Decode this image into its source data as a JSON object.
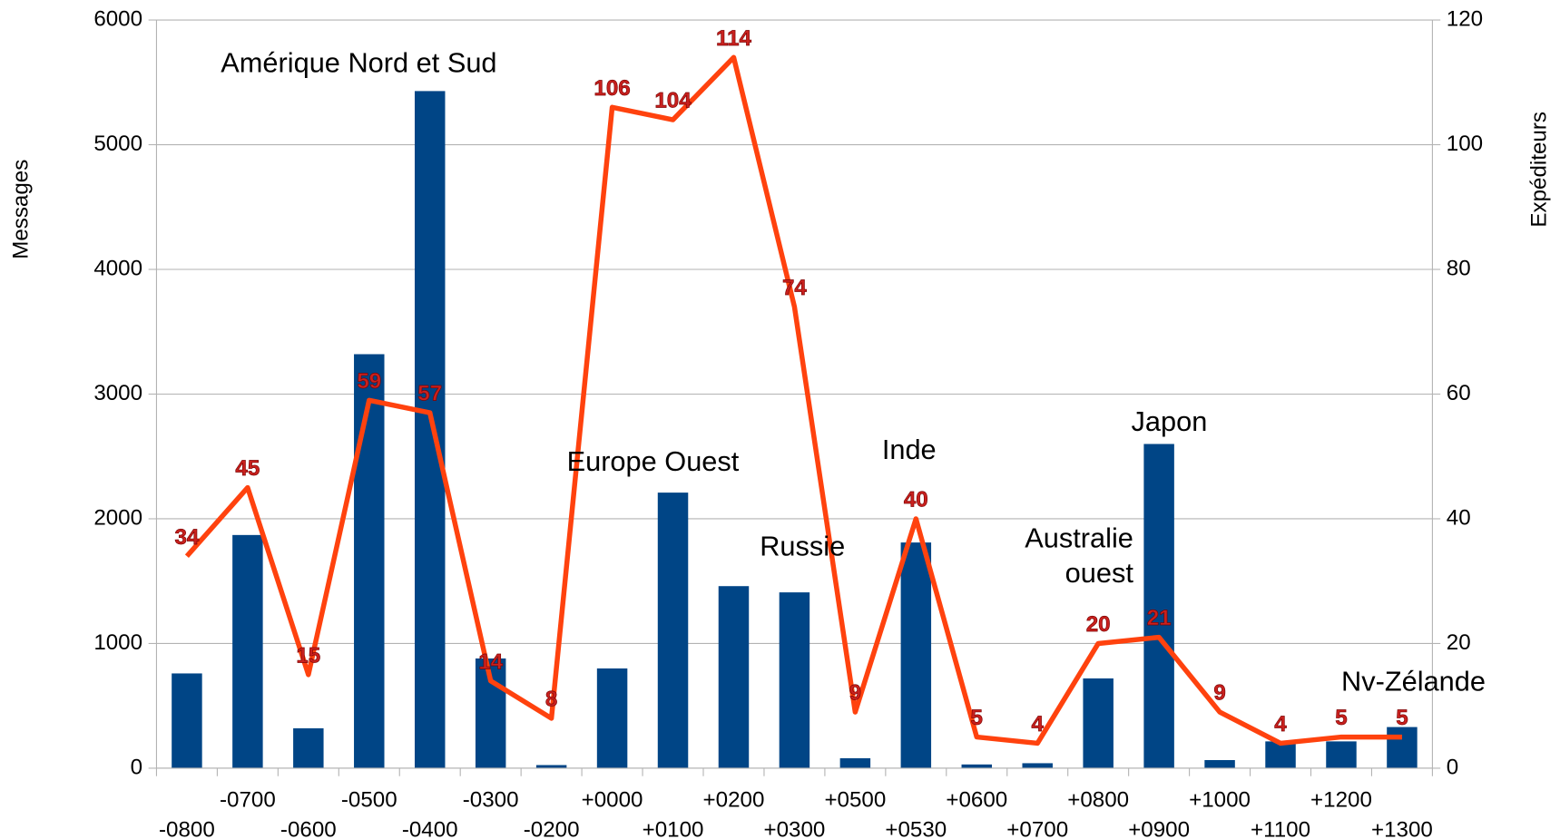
{
  "chart_data": {
    "type": "bar-line",
    "categories": [
      "-0800",
      "-0700",
      "-0600",
      "-0500",
      "-0400",
      "-0300",
      "-0200",
      "+0000",
      "+0100",
      "+0200",
      "+0300",
      "+0500",
      "+0530",
      "+0600",
      "+0700",
      "+0800",
      "+0900",
      "+1000",
      "+1100",
      "+1200",
      "+1300"
    ],
    "series": [
      {
        "name": "Messages",
        "color": "#004586",
        "values": [
          760,
          1870,
          320,
          3320,
          5430,
          880,
          25,
          800,
          2210,
          1460,
          1410,
          80,
          1810,
          30,
          40,
          720,
          2600,
          65,
          215,
          215,
          330
        ]
      },
      {
        "name": "Expéditeurs",
        "color": "#ff420e",
        "axis": "y2",
        "values": [
          34,
          45,
          15,
          59,
          57,
          14,
          8,
          106,
          104,
          114,
          74,
          9,
          40,
          5,
          4,
          20,
          21,
          9,
          4,
          5,
          5
        ]
      }
    ],
    "ylabel": "Messages",
    "y2label": "Expéditeurs",
    "ylim": [
      0,
      6000
    ],
    "yticks": [
      0,
      1000,
      2000,
      3000,
      4000,
      5000,
      6000
    ],
    "y2lim": [
      0,
      120
    ],
    "y2ticks": [
      0,
      20,
      40,
      60,
      80,
      100,
      120
    ],
    "grid": true,
    "value_label_color": "#c9211e",
    "annotations": [
      [
        "Amérique Nord et Sud"
      ],
      [
        "Europe Ouest"
      ],
      [
        "Russie"
      ],
      [
        "Inde"
      ],
      [
        "Australie",
        "ouest"
      ],
      [
        "Japon"
      ],
      [
        "Nv-Zélande"
      ]
    ]
  }
}
